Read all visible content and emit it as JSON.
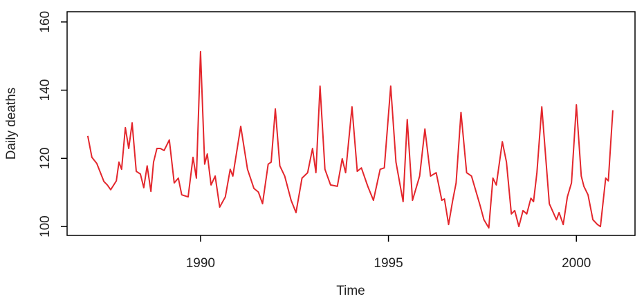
{
  "chart_data": {
    "type": "line",
    "xlabel": "Time",
    "ylabel": "Daily deaths",
    "color": "#e3262c",
    "x": [
      1987.0,
      1987.11,
      1987.24,
      1987.43,
      1987.52,
      1987.61,
      1987.76,
      1987.83,
      1987.9,
      1988.0,
      1988.09,
      1988.18,
      1988.29,
      1988.4,
      1988.49,
      1988.58,
      1988.68,
      1988.75,
      1988.84,
      1988.93,
      1989.03,
      1989.17,
      1989.3,
      1989.41,
      1989.5,
      1989.67,
      1989.8,
      1989.89,
      1990.0,
      1990.11,
      1990.18,
      1990.28,
      1990.39,
      1990.51,
      1990.66,
      1990.79,
      1990.86,
      1991.07,
      1991.25,
      1991.42,
      1991.54,
      1991.65,
      1991.8,
      1991.88,
      1991.99,
      1992.11,
      1992.24,
      1992.41,
      1992.54,
      1992.7,
      1992.85,
      1992.98,
      1993.07,
      1993.18,
      1993.31,
      1993.46,
      1993.64,
      1993.77,
      1993.86,
      1994.03,
      1994.17,
      1994.28,
      1994.45,
      1994.6,
      1994.78,
      1994.89,
      1995.06,
      1995.2,
      1995.39,
      1995.5,
      1995.64,
      1995.83,
      1995.97,
      1996.12,
      1996.27,
      1996.42,
      1996.49,
      1996.6,
      1996.71,
      1996.8,
      1996.93,
      1997.08,
      1997.21,
      1997.44,
      1997.54,
      1997.67,
      1997.78,
      1997.87,
      1998.03,
      1998.14,
      1998.27,
      1998.36,
      1998.47,
      1998.58,
      1998.68,
      1998.79,
      1998.86,
      1998.95,
      1999.08,
      1999.28,
      1999.47,
      1999.54,
      1999.65,
      1999.76,
      1999.87,
      2000.0,
      2000.13,
      2000.2,
      2000.31,
      2000.44,
      2000.56,
      2000.64,
      2000.78,
      2000.85,
      2000.97
    ],
    "values": [
      126.6,
      120.3,
      118.5,
      113.2,
      112.2,
      110.8,
      113.4,
      118.9,
      116.8,
      129.0,
      122.9,
      130.4,
      116.2,
      115.4,
      111.4,
      117.8,
      110.3,
      118.9,
      122.9,
      122.9,
      122.3,
      125.4,
      112.8,
      114.2,
      109.3,
      108.7,
      120.3,
      114.2,
      151.3,
      118.3,
      121.3,
      112.2,
      114.8,
      105.7,
      108.7,
      116.8,
      114.8,
      129.4,
      116.8,
      111.2,
      110.1,
      106.7,
      118.3,
      118.9,
      134.5,
      117.8,
      114.8,
      107.7,
      104.1,
      114.2,
      115.8,
      122.9,
      115.8,
      141.2,
      116.8,
      112.2,
      111.8,
      119.9,
      115.8,
      135.1,
      116.2,
      117.2,
      111.8,
      107.7,
      116.8,
      117.2,
      141.2,
      118.9,
      107.3,
      131.4,
      107.7,
      114.8,
      128.6,
      114.8,
      115.8,
      107.7,
      108.1,
      100.6,
      107.7,
      112.8,
      133.5,
      115.8,
      114.8,
      106.1,
      102.0,
      99.6,
      114.2,
      112.2,
      124.9,
      118.9,
      103.7,
      104.7,
      100.0,
      104.7,
      103.7,
      108.3,
      107.3,
      115.8,
      135.1,
      106.7,
      102.0,
      104.1,
      100.6,
      108.7,
      112.8,
      135.7,
      114.8,
      111.8,
      109.3,
      102.0,
      100.6,
      100.0,
      114.2,
      113.4,
      134.1
    ],
    "xlim": [
      1986.45,
      2001.56
    ],
    "xticks": [
      1990,
      1995,
      2000
    ],
    "ylim": [
      97.4,
      163.0
    ],
    "yticks": [
      100,
      120,
      140,
      160
    ],
    "grid": false
  }
}
